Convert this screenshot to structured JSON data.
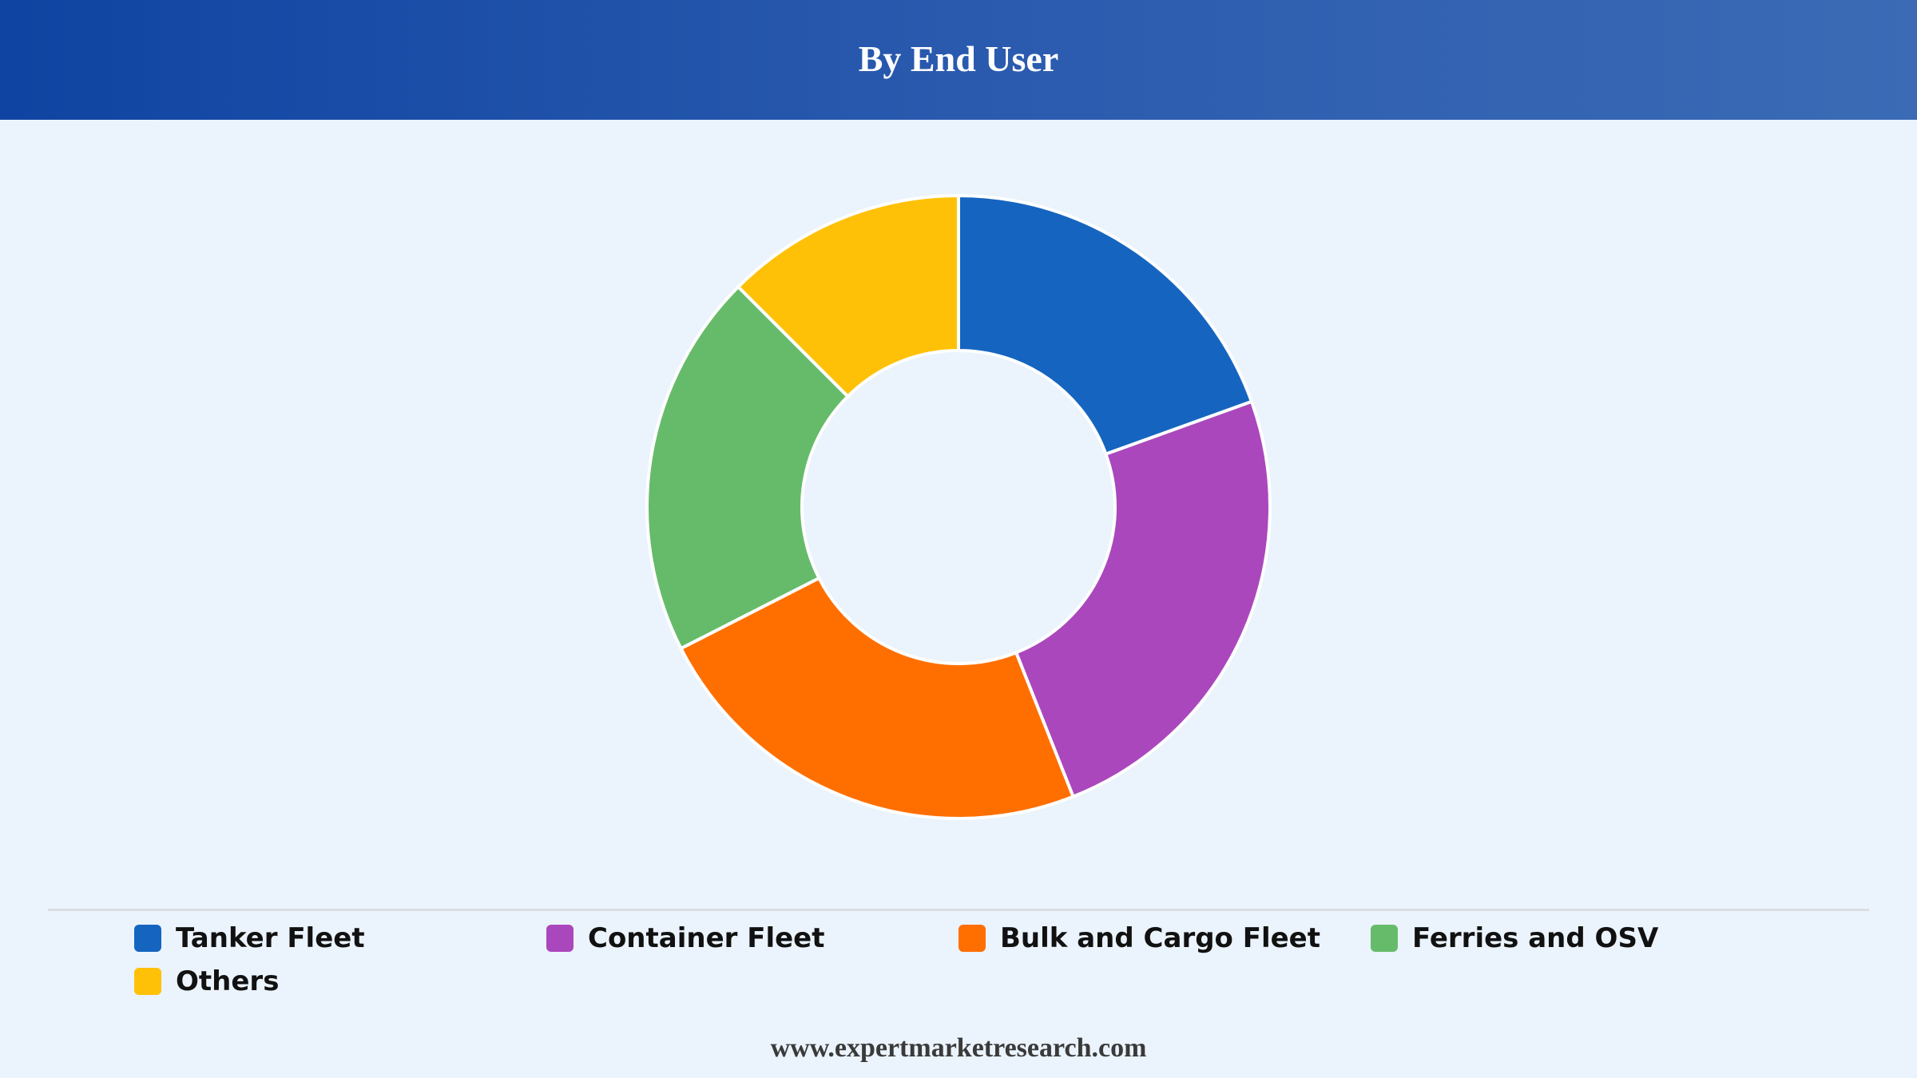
{
  "chart_data": {
    "type": "pie",
    "subtype": "donut",
    "title": "By End User",
    "categories": [
      "Tanker Fleet",
      "Container Fleet",
      "Bulk and Cargo Fleet",
      "Ferries and OSV",
      "Others"
    ],
    "values": [
      19.5,
      24.5,
      23.5,
      20.0,
      12.5
    ],
    "colors": [
      "#1565c0",
      "#ab47bc",
      "#ff6f00",
      "#66bb6a",
      "#ffc107"
    ],
    "legend_position": "bottom"
  },
  "footer": {
    "text": "www.expertmarketresearch.com"
  }
}
